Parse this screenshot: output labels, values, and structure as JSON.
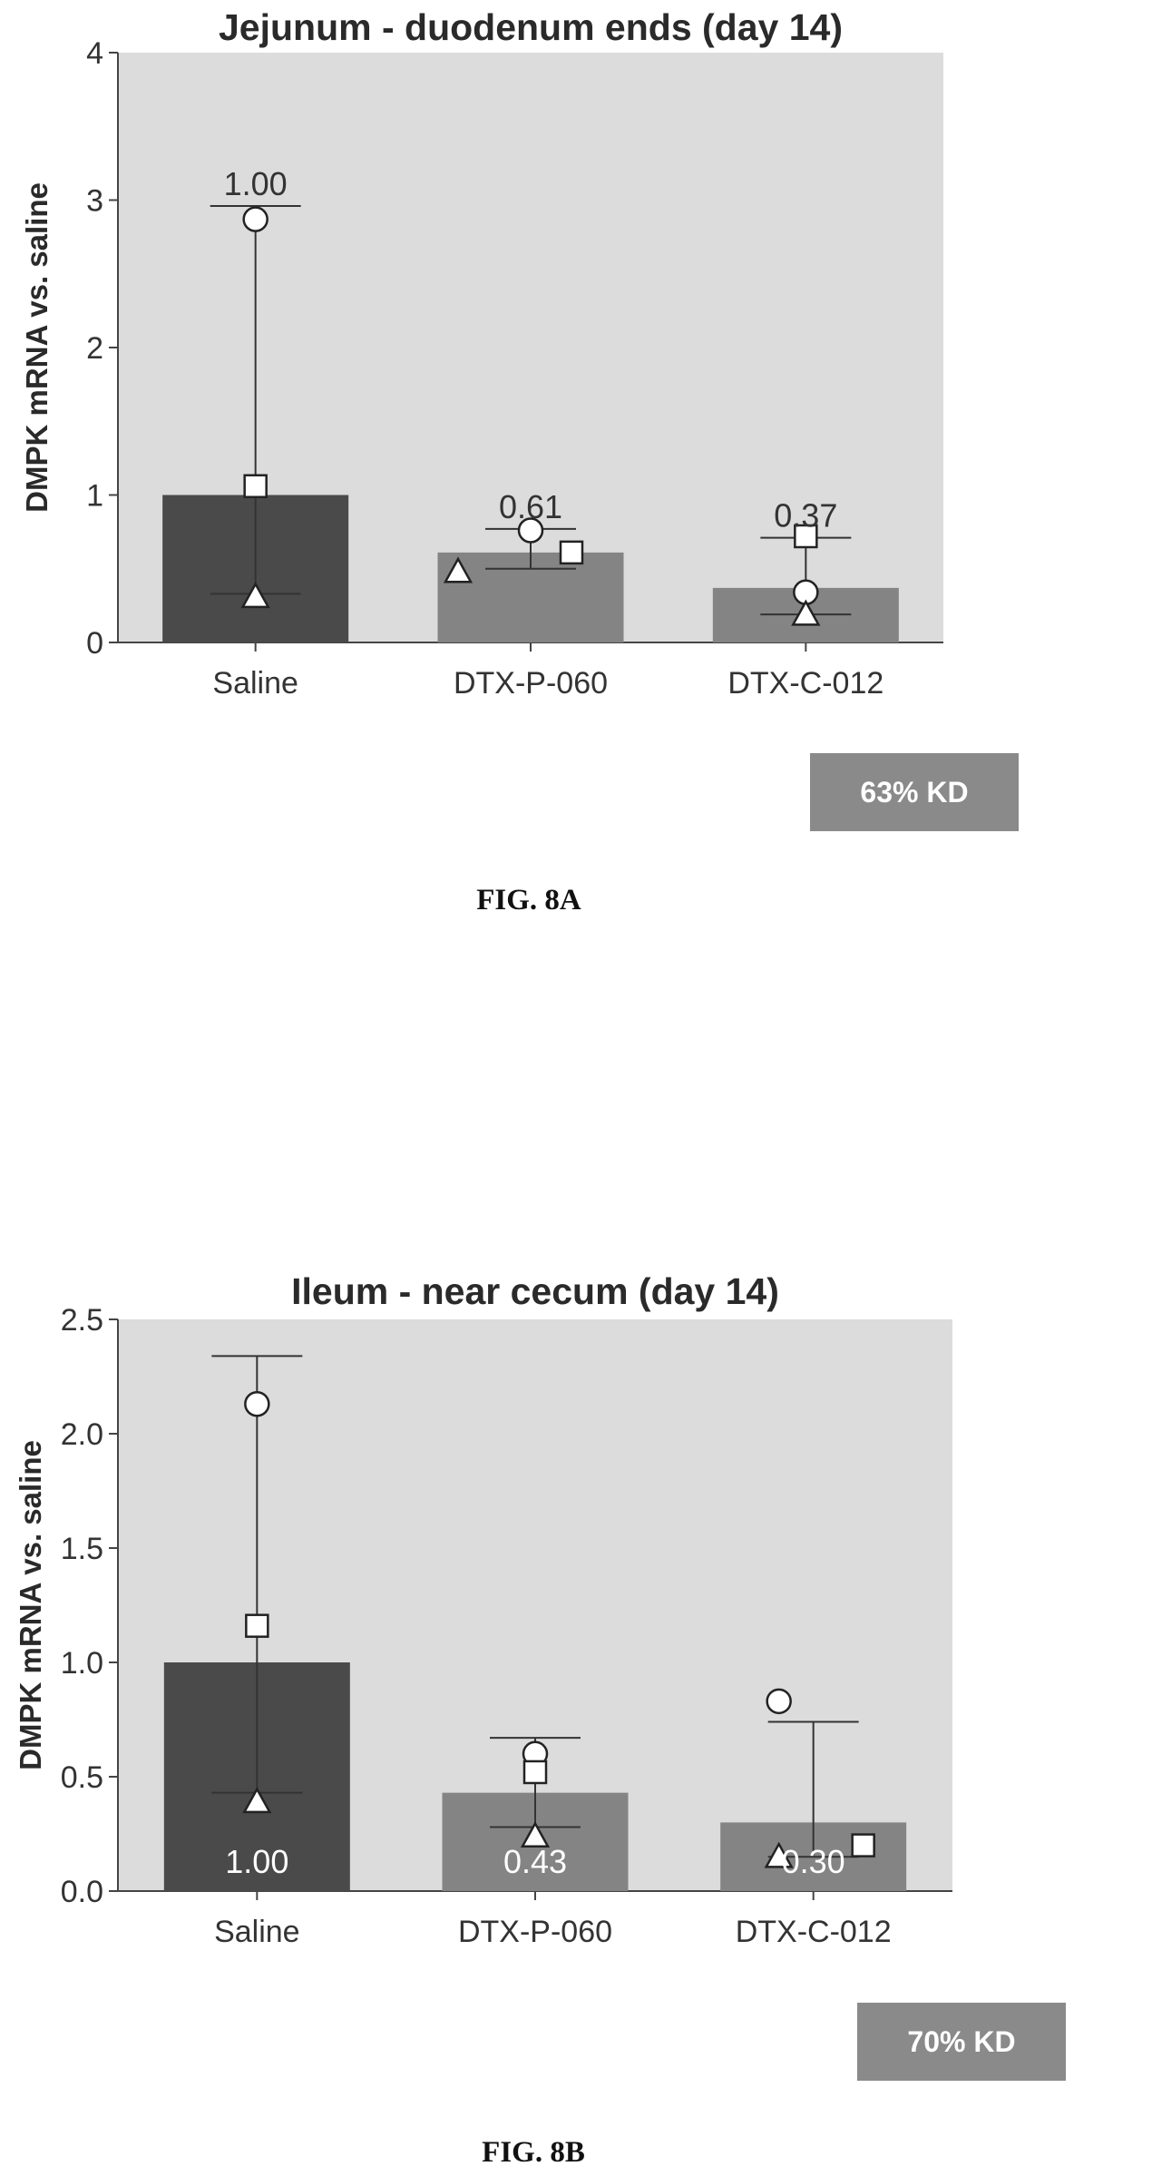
{
  "colors": {
    "plot_background": "#dcdcdc",
    "saline_bar": "#4a4a4a",
    "dtx_p_060_bar": "#848484",
    "dtx_c_012_bar": "#848484",
    "kd_box": "#8a8a8a",
    "error_bar": "#333333"
  },
  "chart_data": [
    {
      "type": "bar",
      "title": "Jejunum - duodenum ends (day 14)",
      "xlabel": "",
      "ylabel": "DMPK mRNA vs. saline",
      "categories": [
        "Saline",
        "DTX-P-060",
        "DTX-C-012"
      ],
      "values": [
        1.0,
        0.61,
        0.37
      ],
      "value_labels": [
        "1.00",
        "0.61",
        "0.37"
      ],
      "value_label_position": "above",
      "error_bars": [
        {
          "low": 0.33,
          "high": 2.96
        },
        {
          "low": 0.5,
          "high": 0.77
        },
        {
          "low": 0.19,
          "high": 0.71
        }
      ],
      "individual_points": [
        [
          {
            "marker": "circle",
            "value": 2.87
          },
          {
            "marker": "square",
            "value": 1.06
          },
          {
            "marker": "triangle",
            "value": 0.31
          }
        ],
        [
          {
            "marker": "triangle",
            "value": 0.48
          },
          {
            "marker": "circle",
            "value": 0.76
          },
          {
            "marker": "square",
            "value": 0.61
          }
        ],
        [
          {
            "marker": "square",
            "value": 0.72
          },
          {
            "marker": "circle",
            "value": 0.34
          },
          {
            "marker": "triangle",
            "value": 0.19
          }
        ]
      ],
      "ylim": [
        0,
        4
      ],
      "yticks": [
        "0",
        "1",
        "2",
        "3",
        "4"
      ],
      "grid": false,
      "annotation": "63% KD",
      "figure_label": "FIG. 8A"
    },
    {
      "type": "bar",
      "title": "Ileum - near cecum (day 14)",
      "xlabel": "",
      "ylabel": "DMPK mRNA vs. saline",
      "categories": [
        "Saline",
        "DTX-P-060",
        "DTX-C-012"
      ],
      "values": [
        1.0,
        0.43,
        0.3
      ],
      "value_labels": [
        "1.00",
        "0.43",
        "0.30"
      ],
      "value_label_position": "inside",
      "error_bars": [
        {
          "low": 0.43,
          "high": 2.34
        },
        {
          "low": 0.28,
          "high": 0.67
        },
        {
          "low": 0.15,
          "high": 0.74
        }
      ],
      "individual_points": [
        [
          {
            "marker": "circle",
            "value": 2.13
          },
          {
            "marker": "square",
            "value": 1.16
          },
          {
            "marker": "triangle",
            "value": 0.39
          }
        ],
        [
          {
            "marker": "circle",
            "value": 0.6
          },
          {
            "marker": "square",
            "value": 0.52
          },
          {
            "marker": "triangle",
            "value": 0.24
          }
        ],
        [
          {
            "marker": "circle",
            "value": 0.83
          },
          {
            "marker": "triangle",
            "value": 0.15
          },
          {
            "marker": "square",
            "value": 0.2
          }
        ]
      ],
      "ylim": [
        0,
        2.5
      ],
      "yticks": [
        "0.0",
        "0.5",
        "1.0",
        "1.5",
        "2.0",
        "2.5"
      ],
      "grid": false,
      "annotation": "70% KD",
      "figure_label": "FIG. 8B"
    }
  ]
}
